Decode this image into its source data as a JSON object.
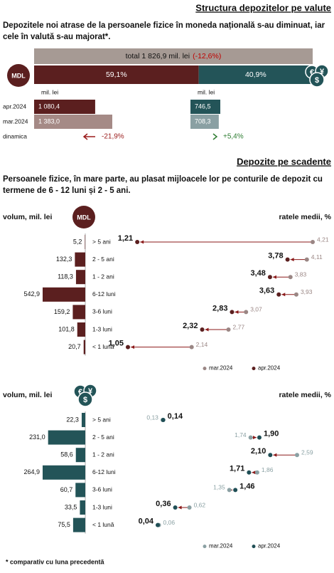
{
  "chart_data": [
    {
      "type": "currency-structure",
      "title": "Structura depozitelor pe valute",
      "subtitle": "Depozitele noi atrase de la persoanele fizice în moneda națională s-au diminuat, iar cele în valută s-au majorat*.",
      "total_label": "total 1 826,9 mil. lei",
      "total_change": "(-12,6%)",
      "badge": "MDL",
      "icon_symbols": [
        "€",
        "¥",
        "$"
      ],
      "shares": {
        "values": [
          59.1,
          40.9
        ],
        "value_labels": [
          "59,1%",
          "40,9%"
        ],
        "colors": [
          "#5b1f1f",
          "#235458"
        ]
      },
      "unit": "mil. lei",
      "rows": [
        "apr.2024",
        "mar.2024"
      ],
      "series": [
        {
          "values": [
            1080.4,
            1383.0
          ],
          "value_labels": [
            "1 080,4",
            "1 383,0"
          ],
          "colors": [
            "#5b1f1f",
            "#a58a86"
          ]
        },
        {
          "values": [
            746.5,
            708.3
          ],
          "value_labels": [
            "746,5",
            "708,3"
          ],
          "colors": [
            "#235458",
            "#8aa0a3"
          ]
        }
      ],
      "dynamics_label": "dinamica",
      "dynamics": {
        "values": [
          -21.9,
          5.4
        ],
        "value_labels": [
          "-21,9%",
          "+5,4%"
        ],
        "colors": [
          "#9b1c1c",
          "#2e7d32"
        ]
      }
    },
    {
      "type": "maturity",
      "title": "Depozite pe scadente",
      "subtitle": "Persoanele fizice, în mare parte, au plasat mijloacele lor pe conturile de depozit cu termene de 6 - 12 luni și 2 - 5 ani.",
      "badge": "MDL",
      "volume_label": "volum, mil. lei",
      "rate_label": "ratele medii, %",
      "categories": [
        "> 5 ani",
        "2 - 5 ani",
        "1 - 2 ani",
        "6-12 luni",
        "3-6 luni",
        "1-3 luni",
        "< 1 lună"
      ],
      "volumes": {
        "values": [
          5.2,
          132.3,
          118.3,
          542.9,
          159.2,
          101.8,
          20.7
        ],
        "value_labels": [
          "5,2",
          "132,3",
          "118,3",
          "542,9",
          "159,2",
          "101,8",
          "20,7"
        ],
        "color": "#5b1f1f"
      },
      "arrow_color": "#8b1a1a",
      "series": [
        {
          "name": "mar.2024",
          "color": "#9a8684",
          "values": [
            4.21,
            4.11,
            3.83,
            3.93,
            3.07,
            2.77,
            2.14
          ],
          "value_labels": [
            "4,21",
            "4,11",
            "3,83",
            "3,93",
            "3,07",
            "2,77",
            "2,14"
          ]
        },
        {
          "name": "apr.2024",
          "color": "#5b1f1f",
          "values": [
            1.21,
            3.78,
            3.48,
            3.63,
            2.83,
            2.32,
            1.05
          ],
          "value_labels": [
            "1,21",
            "3,78",
            "3,48",
            "3,63",
            "2,83",
            "2,32",
            "1,05"
          ]
        }
      ]
    },
    {
      "type": "maturity",
      "icon_symbols": [
        "€",
        "¥",
        "$"
      ],
      "volume_label": "volum, mil. lei",
      "rate_label": "ratele medii, %",
      "categories": [
        "> 5 ani",
        "2 - 5 ani",
        "1 - 2 ani",
        "6-12 luni",
        "3-6 luni",
        "1-3 luni",
        "< 1 lună"
      ],
      "volumes": {
        "values": [
          22.3,
          231.0,
          58.6,
          264.9,
          60.7,
          33.5,
          75.5
        ],
        "value_labels": [
          "22,3",
          "231,0",
          "58,6",
          "264,9",
          "60,7",
          "33,5",
          "75,5"
        ],
        "color": "#235458"
      },
      "arrow_color": "#8b1a1a",
      "series": [
        {
          "name": "mar.2024",
          "color": "#8aa0a3",
          "values": [
            0.13,
            1.74,
            2.59,
            1.86,
            1.35,
            0.62,
            0.06
          ],
          "value_labels": [
            "0,13",
            "1,74",
            "2,59",
            "1,86",
            "1,35",
            "0,62",
            "0,06"
          ]
        },
        {
          "name": "apr.2024",
          "color": "#1f4e55",
          "values": [
            0.14,
            1.9,
            2.1,
            1.71,
            1.46,
            0.36,
            0.04
          ],
          "value_labels": [
            "0,14",
            "1,90",
            "2,10",
            "1,71",
            "1,46",
            "0,36",
            "0,04"
          ]
        }
      ]
    }
  ],
  "footnote": "* comparativ cu luna precedentă"
}
